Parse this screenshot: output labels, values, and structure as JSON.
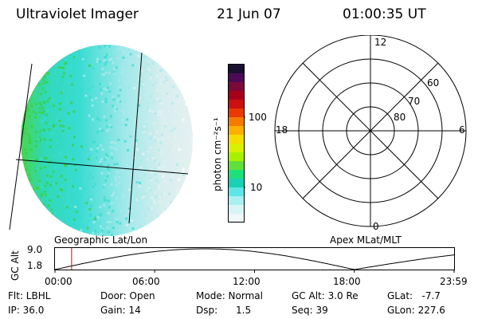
{
  "header": {
    "instrument": "Ultraviolet Imager",
    "date": "21 Jun 07",
    "time": "01:00:35 UT"
  },
  "colorbar": {
    "unit_label": "photon cm⁻²s⁻¹",
    "ticks": [
      "100",
      "10"
    ],
    "colors": [
      "#1a1030",
      "#4b0a55",
      "#7a0a3a",
      "#a8001a",
      "#cc1010",
      "#e83a00",
      "#f57a00",
      "#fbb000",
      "#f5dd00",
      "#d9f000",
      "#a8f000",
      "#62e03a",
      "#1ee07a",
      "#19d2b4",
      "#5ee6e6",
      "#a8f0f0",
      "#d8f5f5",
      "#eef8f8"
    ]
  },
  "image": {
    "colors": {
      "green": "#3ccf3c",
      "cyan": "#39dcd2",
      "light_cyan": "#aee9ec",
      "pale": "#e6f0f0"
    }
  },
  "polar": {
    "mlt_labels": {
      "top": "12",
      "left": "18",
      "right": "6",
      "bottom": "0"
    },
    "lat_labels": [
      "60",
      "70",
      "80"
    ]
  },
  "timeline": {
    "left_caption": "Geographic Lat/Lon",
    "right_caption": "Apex MLat/MLT",
    "axis_label": "GC Alt",
    "y_ticks": [
      "9.0",
      "1.8"
    ],
    "x_ticks": [
      "00:00",
      "06:00",
      "12:00",
      "18:00",
      "23:59"
    ],
    "cursor_time_hours": 1.0
  },
  "info": {
    "flt": "Flt: LBHL",
    "ip": "IP: 36.0",
    "door": "Door: Open",
    "gain": "Gain: 14",
    "mode": "Mode: Normal",
    "dsp": "Dsp:      1.5",
    "gc_alt": "GC Alt: 3.0 Re",
    "seq": "Seq: 39",
    "glat": "GLat:   -7.7",
    "glon": "GLon: 227.6"
  }
}
